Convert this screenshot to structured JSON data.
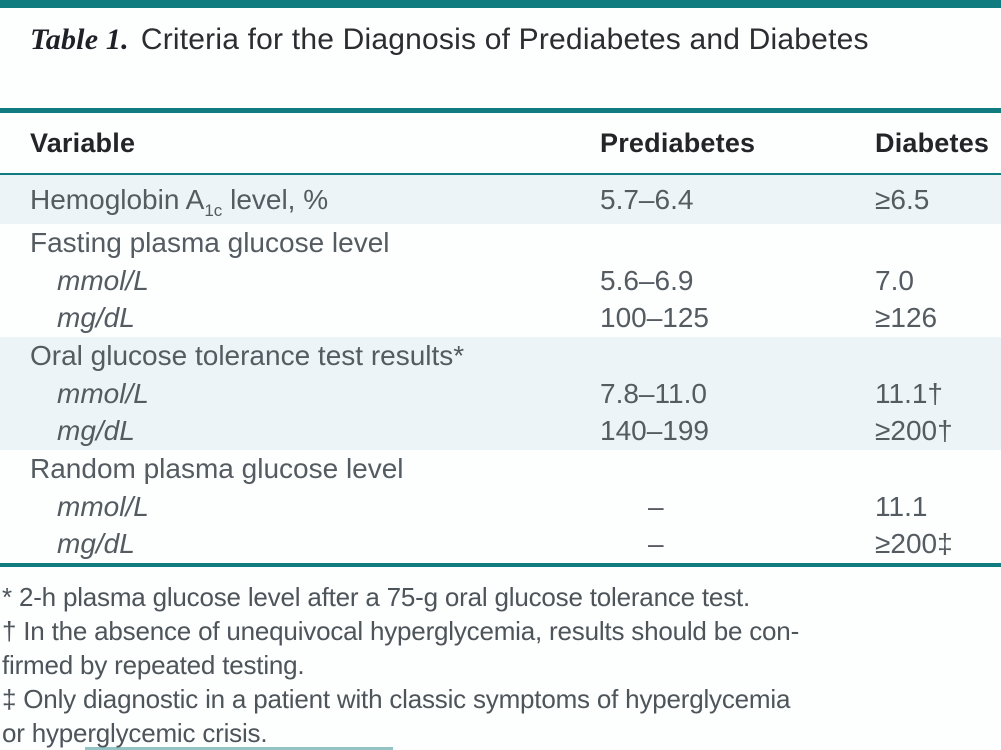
{
  "colors": {
    "accent_teal": "#117c80",
    "shaded_row": "#edf4f7",
    "body_text": "#545b61"
  },
  "title": {
    "label": "Table 1.",
    "text": "Criteria for the Diagnosis of Prediabetes and Diabetes"
  },
  "table": {
    "headers": {
      "variable": "Variable",
      "prediabetes": "Prediabetes",
      "diabetes": "Diabetes"
    },
    "rows": [
      {
        "variable_prefix": "Hemoglobin A",
        "variable_sub": "1c",
        "variable_suffix": " level, %",
        "prediabetes": "5.7–6.4",
        "diabetes": "≥6.5"
      },
      {
        "variable": "Fasting plasma glucose level",
        "prediabetes": "",
        "diabetes": ""
      },
      {
        "variable": "mmol/L",
        "prediabetes": "5.6–6.9",
        "diabetes": "7.0"
      },
      {
        "variable": "mg/dL",
        "prediabetes": "100–125",
        "diabetes": "≥126"
      },
      {
        "variable": "Oral glucose tolerance test results*",
        "prediabetes": "",
        "diabetes": ""
      },
      {
        "variable": "mmol/L",
        "prediabetes": "7.8–11.0",
        "diabetes": "11.1†"
      },
      {
        "variable": "mg/dL",
        "prediabetes": "140–199",
        "diabetes": "≥200†"
      },
      {
        "variable": "Random plasma glucose level",
        "prediabetes": "",
        "diabetes": ""
      },
      {
        "variable": "mmol/L",
        "prediabetes": "–",
        "diabetes": "11.1"
      },
      {
        "variable": "mg/dL",
        "prediabetes": "–",
        "diabetes": "≥200‡"
      }
    ]
  },
  "footnotes": [
    "* 2-h plasma glucose level after a 75-g oral glucose tolerance test.",
    "† In the absence of unequivocal hyperglycemia, results should be con-",
    "firmed by repeated testing.",
    "‡ Only diagnostic in a patient with classic symptoms of hyperglycemia",
    "or hyperglycemic crisis."
  ]
}
